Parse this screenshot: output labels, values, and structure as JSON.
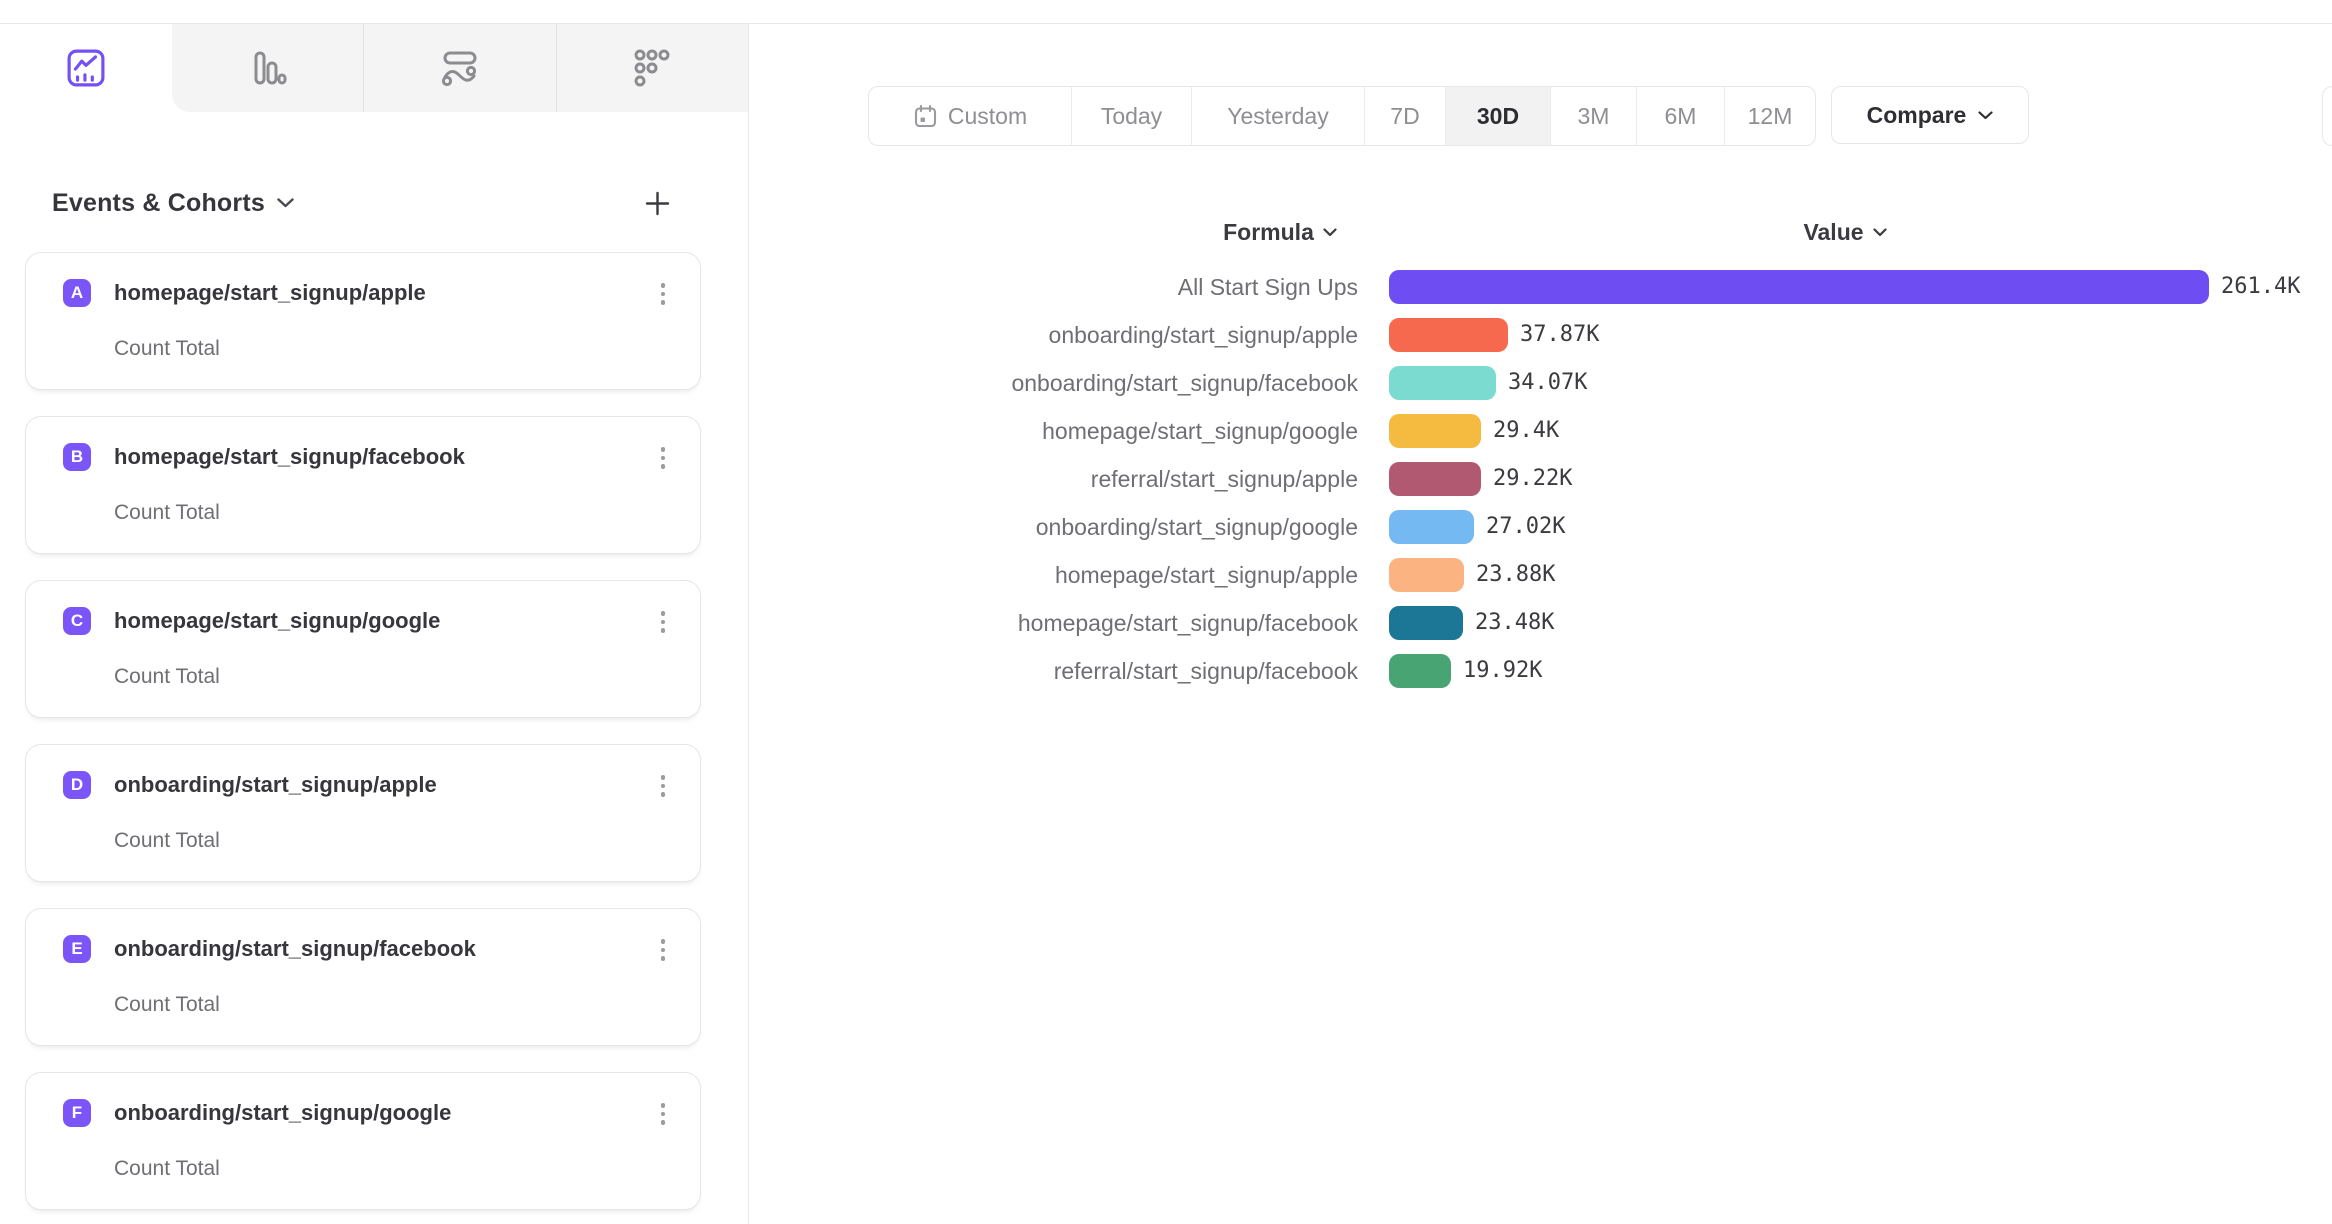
{
  "app": {
    "accent_purple": "#6e4df2",
    "badge_purple": "#7c55f8",
    "tab_bg": "#f4f4f5",
    "border_gray": "#e7e7e9"
  },
  "toolbar_tabs": [
    {
      "icon": "insights-line-chart-icon",
      "active": true
    },
    {
      "icon": "bar-chart-icon",
      "active": false
    },
    {
      "icon": "flows-icon",
      "active": false
    },
    {
      "icon": "retention-dots-icon",
      "active": false
    }
  ],
  "sidebar": {
    "title": "Events & Cohorts",
    "title_chevron": "chevron-down-icon",
    "add_button": "plus-icon",
    "cards": [
      {
        "letter": "A",
        "name": "homepage/start_signup/apple",
        "metric": "Count Total"
      },
      {
        "letter": "B",
        "name": "homepage/start_signup/facebook",
        "metric": "Count Total"
      },
      {
        "letter": "C",
        "name": "homepage/start_signup/google",
        "metric": "Count Total"
      },
      {
        "letter": "D",
        "name": "onboarding/start_signup/apple",
        "metric": "Count Total"
      },
      {
        "letter": "E",
        "name": "onboarding/start_signup/facebook",
        "metric": "Count Total"
      },
      {
        "letter": "F",
        "name": "onboarding/start_signup/google",
        "metric": "Count Total"
      }
    ]
  },
  "daterange": {
    "segments": [
      {
        "label": "Custom",
        "icon": "calendar-icon",
        "active": false
      },
      {
        "label": "Today",
        "active": false
      },
      {
        "label": "Yesterday",
        "active": false
      },
      {
        "label": "7D",
        "active": false
      },
      {
        "label": "30D",
        "active": true
      },
      {
        "label": "3M",
        "active": false
      },
      {
        "label": "6M",
        "active": false
      },
      {
        "label": "12M",
        "active": false
      }
    ],
    "compare_label": "Compare"
  },
  "chart": {
    "formula_header": "Formula",
    "value_header": "Value"
  },
  "chart_data": {
    "type": "bar",
    "orientation": "horizontal",
    "grid": false,
    "legend": false,
    "xlim": [
      0,
      261400
    ],
    "unit": "K",
    "categories": [
      "All Start Sign Ups",
      "onboarding/start_signup/apple",
      "onboarding/start_signup/facebook",
      "homepage/start_signup/google",
      "referral/start_signup/apple",
      "onboarding/start_signup/google",
      "homepage/start_signup/apple",
      "homepage/start_signup/facebook",
      "referral/start_signup/facebook"
    ],
    "values": [
      261400,
      37870,
      34070,
      29400,
      29220,
      27020,
      23880,
      23480,
      19920
    ],
    "value_labels": [
      "261.4K",
      "37.87K",
      "34.07K",
      "29.4K",
      "29.22K",
      "27.02K",
      "23.88K",
      "23.48K",
      "19.92K"
    ],
    "colors": [
      "#6e4df2",
      "#f7694e",
      "#7bdbd0",
      "#f5bb41",
      "#b15971",
      "#74b9f1",
      "#fab381",
      "#1b7795",
      "#48a573"
    ]
  }
}
